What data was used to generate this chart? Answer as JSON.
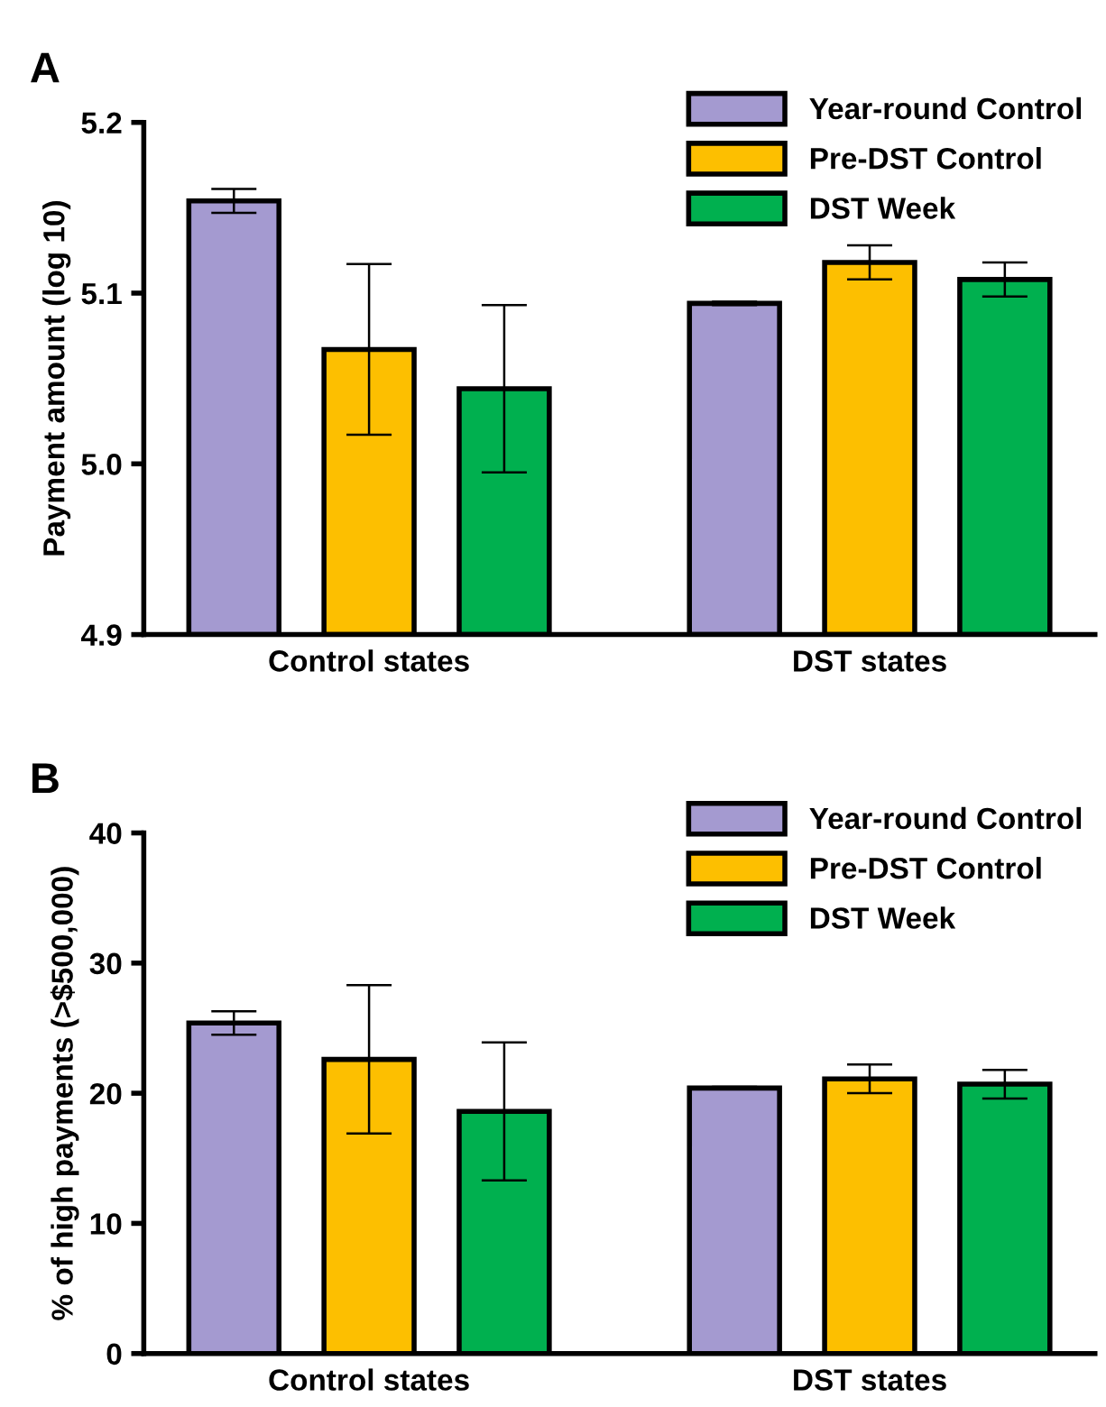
{
  "chart_data": [
    {
      "type": "bar",
      "title": "A",
      "ylabel": "Payment amount (log 10)",
      "categories": [
        "Control states",
        "DST states"
      ],
      "ylim": [
        4.9,
        5.2
      ],
      "yticks": [
        {
          "value": 4.9,
          "label": "4.9"
        },
        {
          "value": 5.0,
          "label": "5.0"
        },
        {
          "value": 5.1,
          "label": "5.1"
        },
        {
          "value": 5.2,
          "label": "5.2"
        }
      ],
      "grid": false,
      "legend": "top right",
      "series": [
        {
          "name": "Year-round Control",
          "color": "#a49ad0",
          "values": [
            5.154,
            5.094
          ],
          "errors": [
            0.007,
            0.001
          ]
        },
        {
          "name": "Pre-DST Control",
          "color": "#fdbf00",
          "values": [
            5.067,
            5.118
          ],
          "errors": [
            0.05,
            0.01
          ]
        },
        {
          "name": "DST Week",
          "color": "#00b04f",
          "values": [
            5.044,
            5.108
          ],
          "errors": [
            0.049,
            0.01
          ]
        }
      ]
    },
    {
      "type": "bar",
      "title": "B",
      "ylabel": "% of high payments (>$500,000)",
      "categories": [
        "Control states",
        "DST states"
      ],
      "ylim": [
        0,
        40
      ],
      "yticks": [
        0,
        10,
        20,
        30,
        40
      ],
      "grid": false,
      "legend": "top right",
      "series": [
        {
          "name": "Year-round Control",
          "color": "#a49ad0",
          "values": [
            25.4,
            20.4
          ],
          "errors": [
            0.9,
            0.1
          ]
        },
        {
          "name": "Pre-DST Control",
          "color": "#fdbf00",
          "values": [
            22.6,
            21.1
          ],
          "errors": [
            5.7,
            1.1
          ]
        },
        {
          "name": "DST Week",
          "color": "#00b04f",
          "values": [
            18.6,
            20.7
          ],
          "errors": [
            5.3,
            1.1
          ]
        }
      ]
    }
  ]
}
